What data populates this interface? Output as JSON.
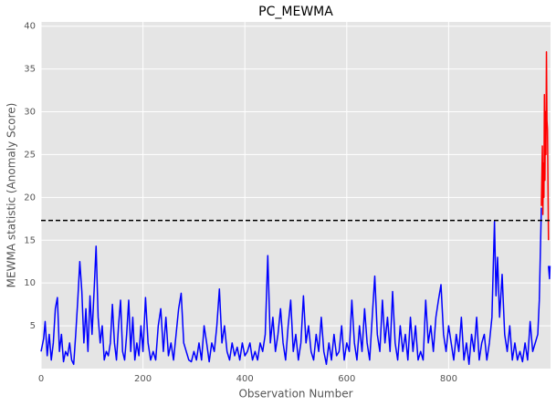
{
  "chart_data": {
    "type": "line",
    "title": "PC_MEWMA",
    "xlabel": "Observation Number",
    "ylabel": "MEWMA statistic (Anomaly Score)",
    "xlim": [
      0,
      1000
    ],
    "ylim": [
      0,
      40.5
    ],
    "xticks": [
      0,
      200,
      400,
      600,
      800
    ],
    "yticks": [
      5,
      10,
      15,
      20,
      25,
      30,
      35,
      40
    ],
    "grid": true,
    "threshold": 17.3,
    "threshold_color": "#000000",
    "series": [
      {
        "color": "#0000ff",
        "x": [
          0,
          5,
          8,
          12,
          16,
          20,
          24,
          28,
          32,
          36,
          40,
          44,
          48,
          52,
          56,
          60,
          64,
          68,
          72,
          76,
          80,
          84,
          88,
          92,
          96,
          100,
          104,
          108,
          112,
          116,
          120,
          124,
          128,
          132,
          136,
          140,
          144,
          148,
          152,
          156,
          160,
          164,
          168,
          172,
          176,
          180,
          184,
          188,
          192,
          196,
          200,
          205,
          210,
          215,
          220,
          225,
          230,
          235,
          240,
          245,
          250,
          255,
          260,
          265,
          270,
          275,
          280,
          285,
          290,
          295,
          300,
          305,
          310,
          315,
          320,
          325,
          330,
          335,
          340,
          345,
          350,
          355,
          360,
          365,
          370,
          375,
          380,
          385,
          390,
          395,
          400,
          405,
          410,
          415,
          420,
          425,
          430,
          435,
          440,
          445,
          450,
          455,
          460,
          465,
          470,
          475,
          480,
          485,
          490,
          495,
          500,
          505,
          510,
          515,
          520,
          525,
          530,
          535,
          540,
          545,
          550,
          555,
          560,
          565,
          570,
          575,
          580,
          585,
          590,
          595,
          600,
          605,
          610,
          615,
          620,
          625,
          630,
          635,
          640,
          645,
          650,
          655,
          660,
          665,
          670,
          675,
          680,
          685,
          690,
          695,
          700,
          705,
          710,
          715,
          720,
          725,
          730,
          735,
          740,
          745,
          750,
          755,
          760,
          765,
          770,
          775,
          780,
          785,
          790,
          795,
          800,
          805,
          810,
          815,
          820,
          825,
          830,
          835,
          840,
          845,
          850,
          855,
          860,
          865,
          870,
          875,
          880,
          885,
          890,
          893,
          896,
          900,
          905,
          910,
          915,
          920,
          925,
          930,
          935,
          940,
          945,
          950,
          955,
          960,
          965,
          970,
          975,
          978,
          982,
          983,
          996,
          998,
          999
        ],
        "values": [
          2,
          3.5,
          5.5,
          1.5,
          4,
          1,
          3,
          7,
          8.3,
          2,
          4,
          0.8,
          2,
          1.5,
          3,
          1,
          0.5,
          4,
          8,
          12.5,
          9,
          3,
          7,
          2,
          8.5,
          4,
          9,
          14.3,
          6,
          3,
          5,
          1,
          2,
          1.5,
          3,
          7.5,
          3,
          1,
          5,
          8,
          2,
          1,
          4,
          8,
          2,
          6,
          1,
          3,
          1.5,
          5,
          2,
          8.3,
          3,
          1,
          2,
          1,
          5,
          7,
          2,
          6,
          1.5,
          3,
          1,
          4,
          7,
          8.8,
          3,
          2,
          1,
          0.8,
          2,
          1,
          3,
          1,
          5,
          3,
          0.8,
          3,
          2,
          5,
          9.3,
          3,
          5,
          2,
          1,
          3,
          1.5,
          2.5,
          1,
          3,
          1.5,
          2,
          3,
          1,
          2,
          1,
          3,
          2,
          4,
          13.2,
          3,
          6,
          2,
          4,
          7,
          3,
          1,
          5,
          8,
          2,
          4,
          1,
          3,
          8.5,
          3,
          5,
          2,
          1,
          4,
          2,
          6,
          2,
          0.5,
          3,
          1,
          4,
          1.5,
          2,
          5,
          1,
          3,
          2,
          8,
          3,
          1,
          5,
          2,
          7,
          3,
          1,
          6,
          10.8,
          4,
          2,
          8,
          3,
          6,
          2,
          9,
          3,
          1,
          5,
          2,
          4,
          1,
          6,
          2,
          5,
          1,
          2,
          1,
          8,
          3,
          5,
          2,
          6,
          8,
          9.8,
          4,
          2,
          5,
          3,
          1,
          4,
          2,
          6,
          1,
          3,
          0.5,
          4,
          2,
          6,
          1,
          3,
          4,
          1,
          3,
          6,
          17.2,
          8.5,
          13,
          6,
          11,
          4,
          2,
          5,
          1,
          3,
          1,
          2,
          0.8,
          3,
          1,
          5.5,
          2,
          3,
          4,
          8,
          18.8,
          null,
          12,
          10.5,
          12
        ]
      },
      {
        "color": "#ff0000",
        "x": [
          982,
          984,
          985,
          986,
          987,
          988,
          989,
          990,
          991,
          992,
          993,
          994,
          995,
          996
        ],
        "values": [
          19,
          26,
          18,
          24,
          20,
          32,
          22,
          30,
          25,
          37,
          29,
          28,
          22,
          15
        ]
      }
    ]
  }
}
